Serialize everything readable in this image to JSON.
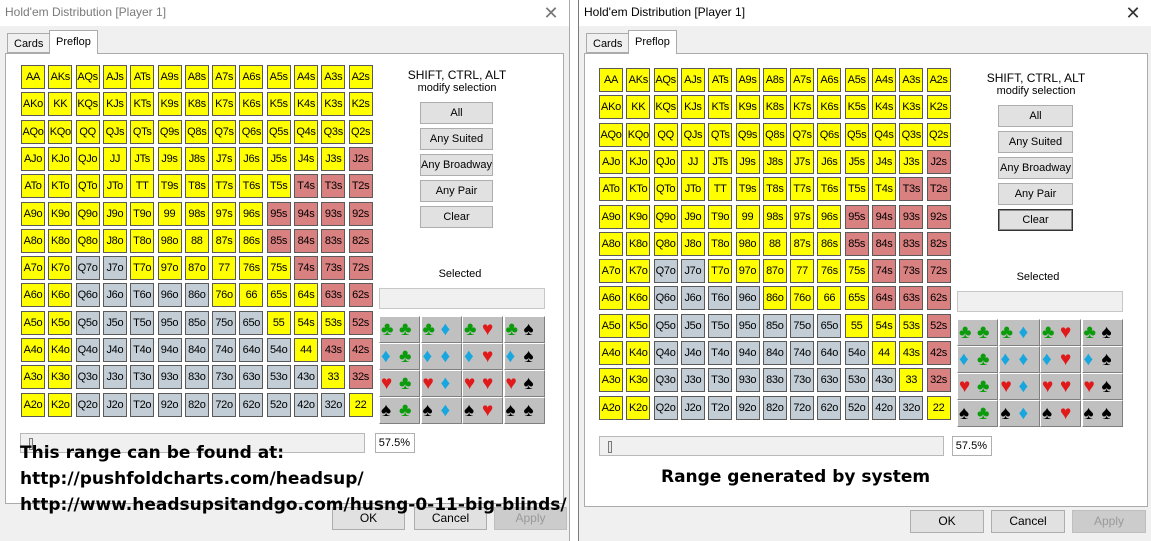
{
  "dialogs": [
    {
      "title": "Hold'em Distribution [Player 1]",
      "tabs": [
        "Cards",
        "Preflop"
      ],
      "hint_line1": "SHIFT, CTRL, ALT",
      "hint_line2": "modify selection",
      "buttons": [
        "All",
        "Any Suited",
        "Any Broadway",
        "Any Pair",
        "Clear"
      ],
      "selected_label": "Selected",
      "percent": "57.5%",
      "footer": {
        "ok": "OK",
        "cancel": "Cancel",
        "apply": "Apply"
      },
      "colors": [
        "YYYYYYYYYYYYY",
        "YYYYYYYYYYYYY",
        "YYYYYYYYYYYYY",
        "YYYYYYYYYYYYP",
        "YYYYYYYYYYPPP",
        "YYYYYYYYYPPPP",
        "YYYYYYYYYPPPP",
        "YYGGYYYYYYPPP",
        "YYGGGGGYYYYPP",
        "YYGGGGGGGYYYP",
        "YYGGGGGGGGYPP",
        "YYGGGGGGGGGYP",
        "YYGGGGGGGGGGY"
      ]
    },
    {
      "title": "Hold'em Distribution [Player 1]",
      "tabs": [
        "Cards",
        "Preflop"
      ],
      "hint_line1": "SHIFT, CTRL, ALT",
      "hint_line2": "modify selection",
      "buttons": [
        "All",
        "Any Suited",
        "Any Broadway",
        "Any Pair",
        "Clear"
      ],
      "selected_label": "Selected",
      "percent": "57.5%",
      "footer": {
        "ok": "OK",
        "cancel": "Cancel",
        "apply": "Apply"
      },
      "colors": [
        "YYYYYYYYYYYYY",
        "YYYYYYYYYYYYY",
        "YYYYYYYYYYYYY",
        "YYYYYYYYYYYYP",
        "YYYYYYYYYYYPP",
        "YYYYYYYYYPPPP",
        "YYYYYYYYYPPPP",
        "YYGGYYYYYYPPP",
        "YYGGGGYYYYPPP",
        "YYGGGGGGGYYYP",
        "YYGGGGGGGGYYP",
        "YYGGGGGGGGGYP",
        "YYGGGGGGGGGGY"
      ]
    }
  ],
  "ranks": [
    "A",
    "K",
    "Q",
    "J",
    "T",
    "9",
    "8",
    "7",
    "6",
    "5",
    "4",
    "3",
    "2"
  ],
  "suit_grid": [
    [
      [
        "clubs",
        "clubs"
      ],
      [
        "clubs",
        "diamonds"
      ],
      [
        "clubs",
        "hearts"
      ],
      [
        "clubs",
        "spades"
      ]
    ],
    [
      [
        "diamonds",
        "clubs"
      ],
      [
        "diamonds",
        "diamonds"
      ],
      [
        "diamonds",
        "hearts"
      ],
      [
        "diamonds",
        "spades"
      ]
    ],
    [
      [
        "hearts",
        "clubs"
      ],
      [
        "hearts",
        "diamonds"
      ],
      [
        "hearts",
        "hearts"
      ],
      [
        "hearts",
        "spades"
      ]
    ],
    [
      [
        "spades",
        "clubs"
      ],
      [
        "spades",
        "diamonds"
      ],
      [
        "spades",
        "hearts"
      ],
      [
        "spades",
        "spades"
      ]
    ]
  ],
  "suit_glyphs": {
    "clubs": "♣",
    "diamonds": "♦",
    "hearts": "♥",
    "spades": "♠"
  },
  "palette": {
    "Y": "#ffff00",
    "G": "#c2cdd6",
    "P": "#d98080"
  },
  "overlay1": {
    "line1": "This range can be found at:",
    "line2": "http://pushfoldcharts.com/headsup/",
    "line3": "http://www.headsupsitandgo.com/husng-0-11-big-blinds/"
  },
  "overlay2": "Range generated by system"
}
